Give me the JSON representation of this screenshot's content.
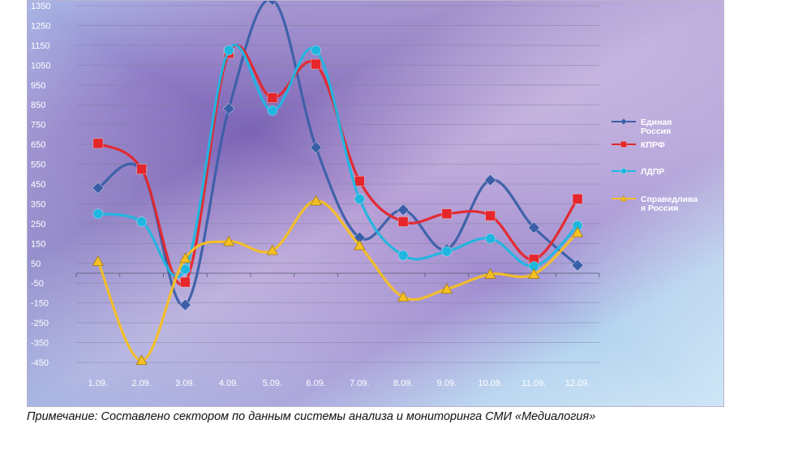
{
  "chart_data": {
    "type": "line",
    "smooth": true,
    "categories": [
      "1.09.",
      "2.09.",
      "3.09.",
      "4.09.",
      "5.09.",
      "6.09.",
      "7.09.",
      "8.09.",
      "9.09.",
      "10.09.",
      "11.09.",
      "12.09."
    ],
    "y_ticks": [
      1350,
      1250,
      1150,
      1050,
      950,
      850,
      750,
      650,
      550,
      450,
      350,
      250,
      150,
      50,
      -50,
      -150,
      -250,
      -350,
      -450
    ],
    "ylim": [
      -500,
      1400
    ],
    "grid": true,
    "legend_position": "right",
    "series": [
      {
        "name": "Единая Россия",
        "name_lines": [
          "Единая",
          "Россия"
        ],
        "color": "#3a5fa8",
        "marker": "diamond",
        "values": [
          430,
          520,
          -160,
          830,
          1380,
          635,
          180,
          320,
          120,
          470,
          230,
          40
        ]
      },
      {
        "name": "КПРФ",
        "name_lines": [
          "КПРФ"
        ],
        "color": "#e5262a",
        "marker": "square",
        "values": [
          655,
          525,
          -45,
          1110,
          885,
          1055,
          465,
          260,
          300,
          290,
          70,
          375
        ]
      },
      {
        "name": "ЛДПР",
        "name_lines": [
          "ЛДПР"
        ],
        "color": "#1fb6e0",
        "marker": "circle",
        "values": [
          300,
          260,
          20,
          1125,
          820,
          1125,
          375,
          90,
          110,
          175,
          35,
          240
        ]
      },
      {
        "name": "Справедливая Россия",
        "name_lines": [
          "Справедлива",
          "я Россия"
        ],
        "color": "#f5c023",
        "marker": "triangle",
        "values": [
          60,
          -440,
          75,
          160,
          115,
          365,
          140,
          -120,
          -80,
          -5,
          -5,
          205
        ]
      }
    ]
  },
  "note": "Примечание: Составлено сектором по данным системы анализа и мониторинга СМИ «Медиалогия»"
}
